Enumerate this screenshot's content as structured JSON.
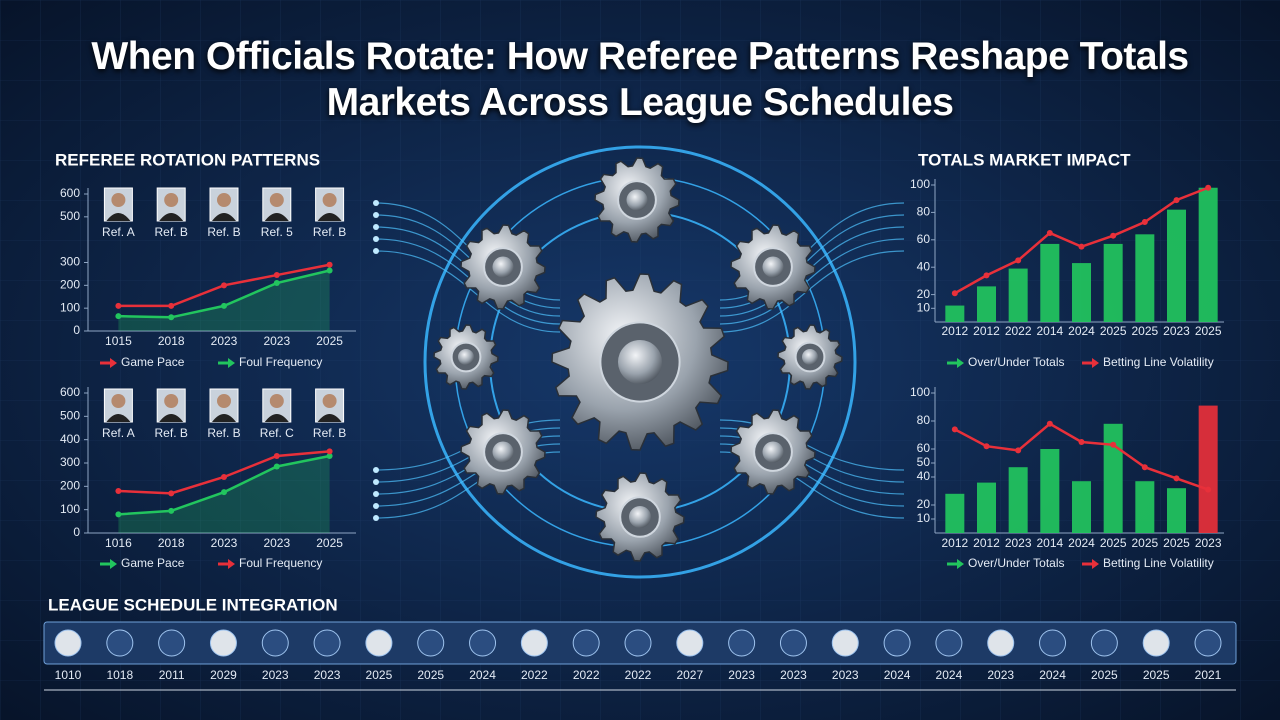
{
  "title": "When Officials Rotate: How Referee Patterns Reshape Totals Markets Across League Schedules",
  "chart_data": [
    {
      "type": "line",
      "title": "REFEREE ROTATION PATTERNS",
      "referees": [
        "Ref. A",
        "Ref. B",
        "Ref. B",
        "Ref. 5",
        "Ref. B"
      ],
      "categories": [
        "1015",
        "2018",
        "2023",
        "2023",
        "2025"
      ],
      "series": [
        {
          "name": "Game Pace",
          "color": "#e8303a",
          "values": [
            110,
            110,
            200,
            245,
            290
          ]
        },
        {
          "name": "Foul Frequency",
          "color": "#22c55e",
          "values": [
            65,
            60,
            110,
            210,
            265
          ],
          "area": true
        }
      ],
      "ylim": [
        0,
        600
      ],
      "yticks": [
        0,
        100,
        200,
        300,
        500,
        600
      ]
    },
    {
      "type": "line",
      "referees": [
        "Ref. A",
        "Ref. B",
        "Ref. B",
        "Ref. C",
        "Ref. B"
      ],
      "categories": [
        "1016",
        "2018",
        "2023",
        "2023",
        "2025"
      ],
      "series": [
        {
          "name": "Game Pace",
          "color": "#22c55e",
          "values": [
            80,
            95,
            175,
            285,
            330
          ],
          "area": true
        },
        {
          "name": "Foul Frequency",
          "color": "#e8303a",
          "values": [
            180,
            170,
            240,
            330,
            350
          ]
        }
      ],
      "ylim": [
        0,
        600
      ],
      "yticks": [
        0,
        100,
        200,
        300,
        400,
        500,
        600
      ]
    },
    {
      "type": "combo",
      "title": "TOTALS MARKET IMPACT",
      "categories": [
        "2012",
        "2012",
        "2022",
        "2014",
        "2024",
        "2025",
        "2025",
        "2023",
        "2025"
      ],
      "series": [
        {
          "name": "Over/Under Totals",
          "type": "bar",
          "color": "#22c55e",
          "values": [
            12,
            26,
            39,
            57,
            43,
            57,
            64,
            82,
            98
          ]
        },
        {
          "name": "Betting Line Volatility",
          "type": "line",
          "color": "#e8303a",
          "values": [
            21,
            34,
            45,
            65,
            55,
            63,
            73,
            89,
            98
          ]
        }
      ],
      "ylim": [
        0,
        100
      ],
      "yticks": [
        10,
        20,
        40,
        60,
        80,
        100
      ]
    },
    {
      "type": "combo",
      "categories": [
        "2012",
        "2012",
        "2023",
        "2014",
        "2024",
        "2025",
        "2025",
        "2025",
        "2023"
      ],
      "series": [
        {
          "name": "Over/Under Totals",
          "type": "bar",
          "color": "#22c55e",
          "colors": [
            "#22c55e",
            "#22c55e",
            "#22c55e",
            "#22c55e",
            "#22c55e",
            "#22c55e",
            "#22c55e",
            "#22c55e",
            "#e8303a"
          ],
          "values": [
            28,
            36,
            47,
            60,
            37,
            78,
            37,
            32,
            91
          ]
        },
        {
          "name": "Betting Line Volatility",
          "type": "line",
          "color": "#e8303a",
          "values": [
            74,
            62,
            59,
            78,
            65,
            63,
            47,
            39,
            31
          ]
        }
      ],
      "ylim": [
        0,
        100
      ],
      "yticks": [
        10,
        20,
        40,
        50,
        60,
        80,
        100
      ]
    }
  ],
  "timeline": {
    "title": "LEAGUE SCHEDULE INTEGRATION",
    "labels": [
      "1010",
      "1018",
      "2011",
      "2029",
      "2023",
      "2023",
      "2025",
      "2025",
      "2024",
      "2022",
      "2022",
      "2022",
      "2027",
      "2023",
      "2023",
      "2023",
      "2024",
      "2024",
      "2023",
      "2024",
      "2025",
      "2025",
      "2021"
    ]
  }
}
